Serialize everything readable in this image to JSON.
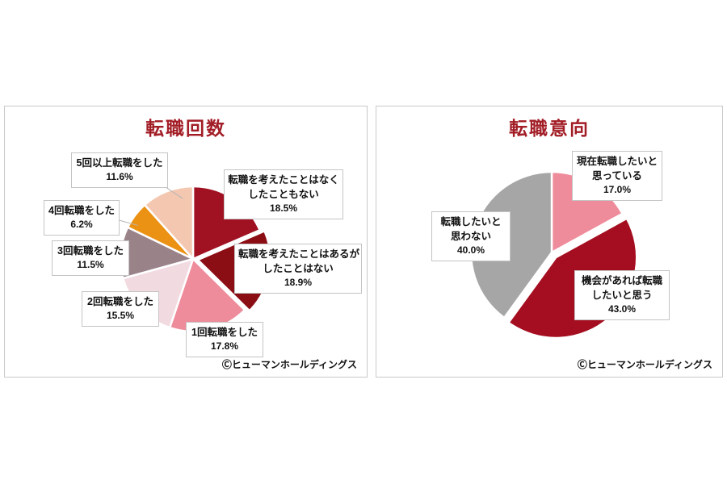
{
  "chart_data": [
    {
      "type": "pie",
      "title": "転職回数",
      "start_angle_deg": 0,
      "direction": "clockwise",
      "legend_position": "none",
      "slices": [
        {
          "label": "転職を考えたことはなくしたこともない",
          "value": 18.5,
          "color": "#A01122",
          "exploded": false
        },
        {
          "label": "転職を考えたことはあるがしたことはない",
          "value": 18.9,
          "color": "#8C0E15",
          "exploded": true
        },
        {
          "label": "1回転職をした",
          "value": 17.8,
          "color": "#EE8C9B",
          "exploded": false
        },
        {
          "label": "2回転職をした",
          "value": 15.5,
          "color": "#F2DBE0",
          "exploded": false
        },
        {
          "label": "3回転職をした",
          "value": 11.5,
          "color": "#9A8289",
          "exploded": false
        },
        {
          "label": "4回転職をした",
          "value": 6.2,
          "color": "#EB9114",
          "exploded": false
        },
        {
          "label": "5回以上転職をした",
          "value": 11.6,
          "color": "#F4C8B0",
          "exploded": false
        }
      ]
    },
    {
      "type": "pie",
      "title": "転職意向",
      "start_angle_deg": 0,
      "direction": "clockwise",
      "legend_position": "none",
      "slices": [
        {
          "label": "現在転職したいと思っている",
          "value": 17.0,
          "color": "#EF8C9B",
          "exploded": false
        },
        {
          "label": "機会があれば転職したいと思う",
          "value": 43.0,
          "color": "#A40E20",
          "exploded": true
        },
        {
          "label": "転職したいと思わない",
          "value": 40.0,
          "color": "#A6A6A6",
          "exploded": false
        }
      ]
    }
  ],
  "left_chart": {
    "callouts": [
      {
        "l1": "5回以上転職をした",
        "pct": "11.6%"
      },
      {
        "l1": "4回転職をした",
        "pct": "6.2%"
      },
      {
        "l1": "3回転職をした",
        "pct": "11.5%"
      },
      {
        "l1": "2回転職をした",
        "pct": "15.5%"
      },
      {
        "l1": "1回転職をした",
        "pct": "17.8%"
      },
      {
        "l1": "転職を考えたことはなく",
        "l2": "したこともない",
        "pct": "18.5%"
      },
      {
        "l1": "転職を考えたことはあるが",
        "l2": "したことはない",
        "pct": "18.9%"
      }
    ]
  },
  "right_chart": {
    "callouts": [
      {
        "l1": "現在転職したいと",
        "l2": "思っている",
        "pct": "17.0%"
      },
      {
        "l1": "転職したいと",
        "l2": "思わない",
        "pct": "40.0%"
      },
      {
        "l1": "機会があれば転職",
        "l2": "したいと思う",
        "pct": "43.0%"
      }
    ]
  },
  "footer_credit": "Ⓒヒューマンホールディングス",
  "colors": {
    "title_text": "#A21D26",
    "panel_border": "#C9C9C9",
    "callout_border": "#C4C4C4",
    "body_text": "#111111",
    "slice_stroke": "#FFFFFF"
  }
}
